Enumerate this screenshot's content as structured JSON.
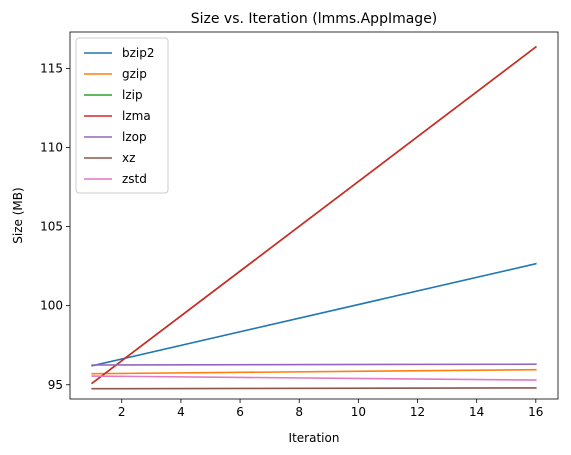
{
  "chart_data": {
    "type": "line",
    "title": "Size vs. Iteration (lmms.AppImage)",
    "xlabel": "Iteration",
    "ylabel": "Size (MB)",
    "xlim": [
      0.25,
      16.75
    ],
    "ylim": [
      94.1,
      117.3
    ],
    "xticks": [
      2,
      4,
      6,
      8,
      10,
      12,
      14,
      16
    ],
    "yticks": [
      95,
      100,
      105,
      110,
      115
    ],
    "grid": false,
    "legend_position": "top-left",
    "x": [
      1,
      16
    ],
    "series": [
      {
        "name": "bzip2",
        "color": "#1f77b4",
        "values": [
          96.2,
          102.65
        ]
      },
      {
        "name": "gzip",
        "color": "#ff7f0e",
        "values": [
          95.7,
          95.95
        ]
      },
      {
        "name": "lzip",
        "color": "#2ca02c",
        "values": [
          95.1,
          116.35
        ]
      },
      {
        "name": "lzma",
        "color": "#d62728",
        "values": [
          95.1,
          116.35
        ]
      },
      {
        "name": "lzop",
        "color": "#9467bd",
        "values": [
          96.25,
          96.3
        ]
      },
      {
        "name": "xz",
        "color": "#8c564b",
        "values": [
          94.75,
          94.8
        ]
      },
      {
        "name": "zstd",
        "color": "#e377c2",
        "values": [
          95.55,
          95.3
        ]
      }
    ]
  }
}
